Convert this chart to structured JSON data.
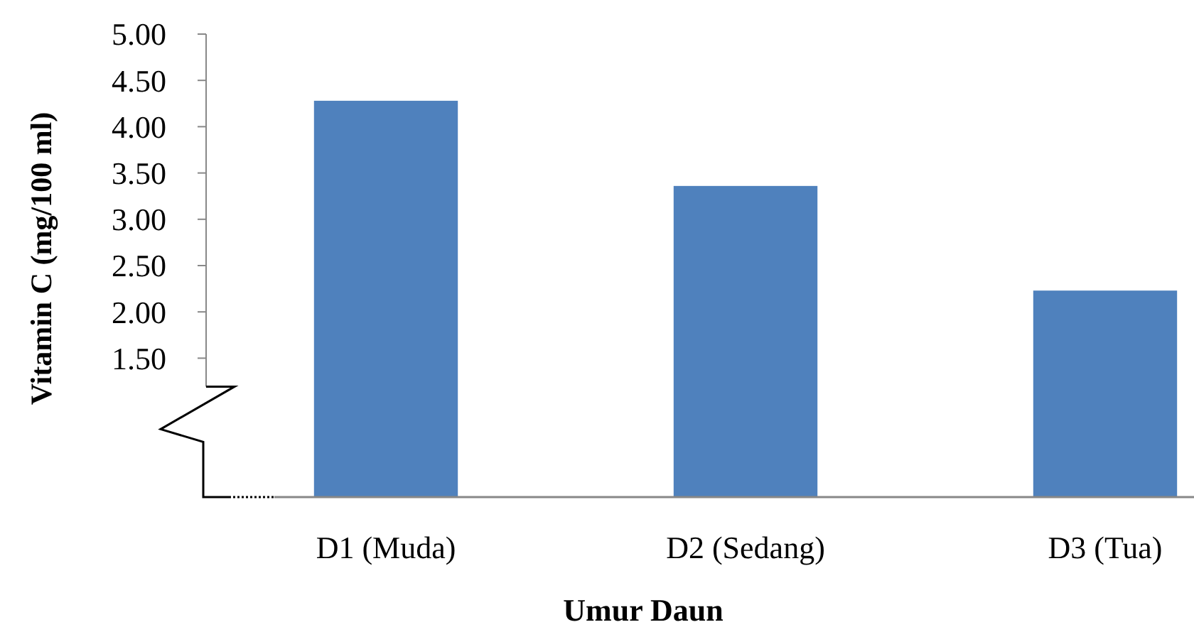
{
  "chart_data": {
    "type": "bar",
    "xlabel": "Umur Daun",
    "ylabel": "Vitamin C (mg/100 ml)",
    "categories": [
      "D1 (Muda)",
      "D2 (Sedang)",
      "D3 (Tua)"
    ],
    "values": [
      4.28,
      3.36,
      2.23
    ],
    "color": "#4f81bd",
    "ylim": [
      0,
      5
    ],
    "yticks": [
      {
        "value": 1.5,
        "label": "1.50"
      },
      {
        "value": 2,
        "label": "2.00"
      },
      {
        "value": 2.5,
        "label": "2.50"
      },
      {
        "value": 3,
        "label": "3.00"
      },
      {
        "value": 3.5,
        "label": "3.50"
      },
      {
        "value": 4,
        "label": "4.00"
      },
      {
        "value": 4.5,
        "label": "4.50"
      },
      {
        "value": 5,
        "label": "5.00"
      }
    ],
    "grid": false
  }
}
